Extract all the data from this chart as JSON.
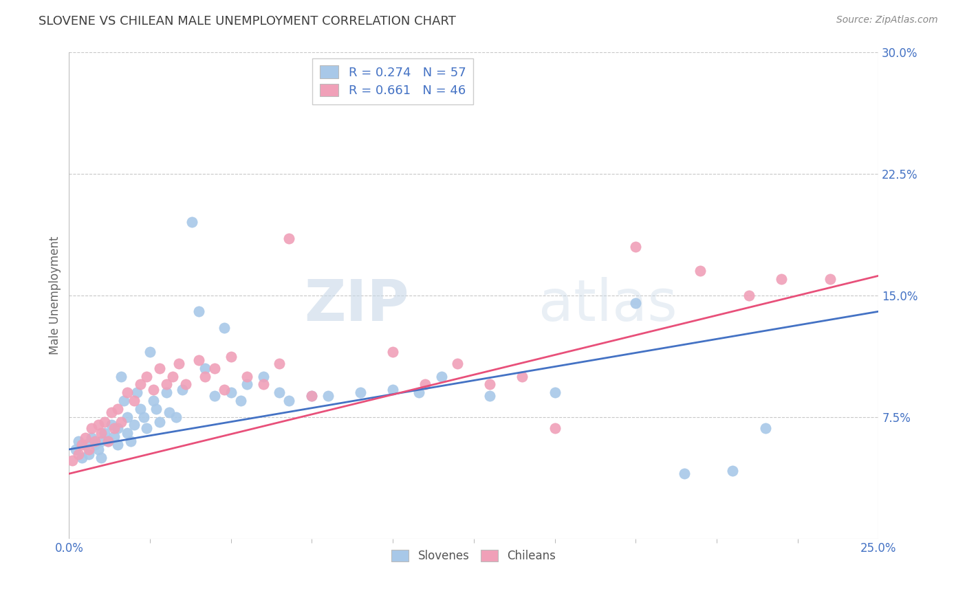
{
  "title": "SLOVENE VS CHILEAN MALE UNEMPLOYMENT CORRELATION CHART",
  "source": "Source: ZipAtlas.com",
  "ylabel": "Male Unemployment",
  "xlim": [
    0.0,
    0.25
  ],
  "ylim": [
    0.0,
    0.3
  ],
  "xtick_positions": [
    0.0,
    0.25
  ],
  "xtick_labels": [
    "0.0%",
    "25.0%"
  ],
  "yticks": [
    0.075,
    0.15,
    0.225,
    0.3
  ],
  "ytick_labels": [
    "7.5%",
    "15.0%",
    "22.5%",
    "30.0%"
  ],
  "slovene_color": "#a8c8e8",
  "chilean_color": "#f0a0b8",
  "slovene_line_color": "#4472c4",
  "chilean_line_color": "#e8507a",
  "slovene_R": 0.274,
  "slovene_N": 57,
  "chilean_R": 0.661,
  "chilean_N": 46,
  "legend_label_slovenes": "Slovenes",
  "legend_label_chileans": "Chileans",
  "watermark_zip": "ZIP",
  "watermark_atlas": "atlas",
  "background_color": "#ffffff",
  "grid_color": "#c8c8c8",
  "title_color": "#404040",
  "axis_label_color": "#4472c4",
  "tick_label_color": "#555555",
  "slovene_scatter": [
    [
      0.002,
      0.055
    ],
    [
      0.003,
      0.06
    ],
    [
      0.004,
      0.05
    ],
    [
      0.005,
      0.058
    ],
    [
      0.006,
      0.052
    ],
    [
      0.007,
      0.062
    ],
    [
      0.008,
      0.058
    ],
    [
      0.009,
      0.055
    ],
    [
      0.01,
      0.06
    ],
    [
      0.01,
      0.05
    ],
    [
      0.011,
      0.065
    ],
    [
      0.012,
      0.06
    ],
    [
      0.013,
      0.07
    ],
    [
      0.014,
      0.063
    ],
    [
      0.015,
      0.068
    ],
    [
      0.015,
      0.058
    ],
    [
      0.016,
      0.1
    ],
    [
      0.017,
      0.085
    ],
    [
      0.018,
      0.075
    ],
    [
      0.018,
      0.065
    ],
    [
      0.019,
      0.06
    ],
    [
      0.02,
      0.07
    ],
    [
      0.021,
      0.09
    ],
    [
      0.022,
      0.08
    ],
    [
      0.023,
      0.075
    ],
    [
      0.024,
      0.068
    ],
    [
      0.025,
      0.115
    ],
    [
      0.026,
      0.085
    ],
    [
      0.027,
      0.08
    ],
    [
      0.028,
      0.072
    ],
    [
      0.03,
      0.09
    ],
    [
      0.031,
      0.078
    ],
    [
      0.033,
      0.075
    ],
    [
      0.035,
      0.092
    ],
    [
      0.038,
      0.195
    ],
    [
      0.04,
      0.14
    ],
    [
      0.042,
      0.105
    ],
    [
      0.045,
      0.088
    ],
    [
      0.048,
      0.13
    ],
    [
      0.05,
      0.09
    ],
    [
      0.053,
      0.085
    ],
    [
      0.055,
      0.095
    ],
    [
      0.06,
      0.1
    ],
    [
      0.065,
      0.09
    ],
    [
      0.068,
      0.085
    ],
    [
      0.075,
      0.088
    ],
    [
      0.08,
      0.088
    ],
    [
      0.09,
      0.09
    ],
    [
      0.1,
      0.092
    ],
    [
      0.108,
      0.09
    ],
    [
      0.115,
      0.1
    ],
    [
      0.13,
      0.088
    ],
    [
      0.15,
      0.09
    ],
    [
      0.175,
      0.145
    ],
    [
      0.19,
      0.04
    ],
    [
      0.205,
      0.042
    ],
    [
      0.215,
      0.068
    ]
  ],
  "chilean_scatter": [
    [
      0.001,
      0.048
    ],
    [
      0.003,
      0.052
    ],
    [
      0.004,
      0.058
    ],
    [
      0.005,
      0.062
    ],
    [
      0.006,
      0.055
    ],
    [
      0.007,
      0.068
    ],
    [
      0.008,
      0.06
    ],
    [
      0.009,
      0.07
    ],
    [
      0.01,
      0.065
    ],
    [
      0.011,
      0.072
    ],
    [
      0.012,
      0.06
    ],
    [
      0.013,
      0.078
    ],
    [
      0.014,
      0.068
    ],
    [
      0.015,
      0.08
    ],
    [
      0.016,
      0.072
    ],
    [
      0.018,
      0.09
    ],
    [
      0.02,
      0.085
    ],
    [
      0.022,
      0.095
    ],
    [
      0.024,
      0.1
    ],
    [
      0.026,
      0.092
    ],
    [
      0.028,
      0.105
    ],
    [
      0.03,
      0.095
    ],
    [
      0.032,
      0.1
    ],
    [
      0.034,
      0.108
    ],
    [
      0.036,
      0.095
    ],
    [
      0.04,
      0.11
    ],
    [
      0.042,
      0.1
    ],
    [
      0.045,
      0.105
    ],
    [
      0.048,
      0.092
    ],
    [
      0.05,
      0.112
    ],
    [
      0.055,
      0.1
    ],
    [
      0.06,
      0.095
    ],
    [
      0.065,
      0.108
    ],
    [
      0.068,
      0.185
    ],
    [
      0.075,
      0.088
    ],
    [
      0.1,
      0.115
    ],
    [
      0.11,
      0.095
    ],
    [
      0.12,
      0.108
    ],
    [
      0.13,
      0.095
    ],
    [
      0.14,
      0.1
    ],
    [
      0.15,
      0.068
    ],
    [
      0.175,
      0.18
    ],
    [
      0.195,
      0.165
    ],
    [
      0.21,
      0.15
    ],
    [
      0.22,
      0.16
    ],
    [
      0.235,
      0.16
    ]
  ]
}
